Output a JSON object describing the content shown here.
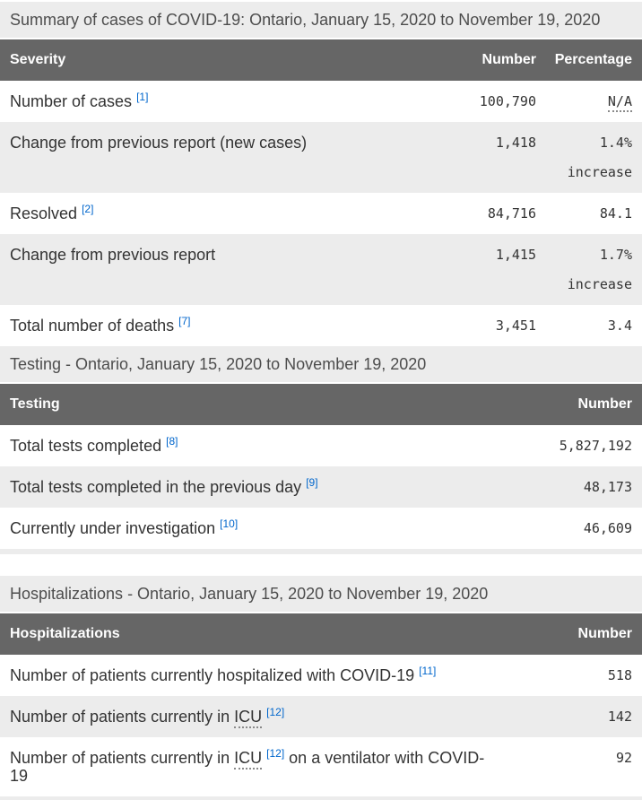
{
  "colors": {
    "header_bg": "#666666",
    "stripe_bg": "#ececec",
    "footnote_link": "#0066cc",
    "header_text": "#ffffff",
    "body_text": "#333333"
  },
  "sections": [
    {
      "caption": "Summary of cases of COVID-19: Ontario, January 15, 2020 to November 19, 2020",
      "header": {
        "label": "Severity",
        "cols": [
          "Number",
          "Percentage"
        ]
      },
      "rows": [
        {
          "label_parts": [
            {
              "type": "text",
              "text": "Number of cases"
            },
            {
              "type": "footnote",
              "text": "[1]"
            }
          ],
          "number": "100,790",
          "percentage": {
            "text": "N/A",
            "abbr": true
          }
        },
        {
          "label_parts": [
            {
              "type": "text",
              "text": "Change from previous report (new cases)"
            }
          ],
          "number": "1,418",
          "percentage": {
            "text": "1.4%",
            "note": "increase"
          }
        },
        {
          "label_parts": [
            {
              "type": "text",
              "text": "Resolved"
            },
            {
              "type": "footnote",
              "text": "[2]"
            }
          ],
          "number": "84,716",
          "percentage": {
            "text": "84.1"
          }
        },
        {
          "label_parts": [
            {
              "type": "text",
              "text": "Change from previous report"
            }
          ],
          "number": "1,415",
          "percentage": {
            "text": "1.7%",
            "note": "increase"
          }
        },
        {
          "label_parts": [
            {
              "type": "text",
              "text": "Total number of deaths"
            },
            {
              "type": "footnote",
              "text": "[7]"
            }
          ],
          "number": "3,451",
          "percentage": {
            "text": "3.4"
          }
        }
      ]
    },
    {
      "caption": "Testing - Ontario, January 15, 2020 to November 19, 2020",
      "header": {
        "label": "Testing",
        "cols": [
          "Number"
        ]
      },
      "rows": [
        {
          "label_parts": [
            {
              "type": "text",
              "text": "Total tests completed"
            },
            {
              "type": "footnote",
              "text": "[8]"
            }
          ],
          "number": "5,827,192"
        },
        {
          "label_parts": [
            {
              "type": "text",
              "text": "Total tests completed in the previous day"
            },
            {
              "type": "footnote",
              "text": "[9]"
            }
          ],
          "number": "48,173"
        },
        {
          "label_parts": [
            {
              "type": "text",
              "text": "Currently under investigation"
            },
            {
              "type": "footnote",
              "text": "[10]"
            }
          ],
          "number": "46,609"
        }
      ]
    },
    {
      "caption": "Hospitalizations - Ontario, January 15, 2020 to November 19, 2020",
      "header": {
        "label": "Hospitalizations",
        "cols": [
          "Number"
        ]
      },
      "rows": [
        {
          "label_parts": [
            {
              "type": "text",
              "text": "Number of patients currently hospitalized with COVID-19"
            },
            {
              "type": "footnote",
              "text": "[11]"
            }
          ],
          "number": "518"
        },
        {
          "label_parts": [
            {
              "type": "text",
              "text": "Number of patients currently in"
            },
            {
              "type": "abbr",
              "text": "ICU"
            },
            {
              "type": "footnote",
              "text": "[12]"
            }
          ],
          "number": "142"
        },
        {
          "label_parts": [
            {
              "type": "text",
              "text": "Number of patients currently in"
            },
            {
              "type": "abbr",
              "text": "ICU"
            },
            {
              "type": "footnote",
              "text": "[12]"
            },
            {
              "type": "text",
              "text": "on a ventilator with COVID-19"
            }
          ],
          "number": "92"
        }
      ]
    }
  ]
}
